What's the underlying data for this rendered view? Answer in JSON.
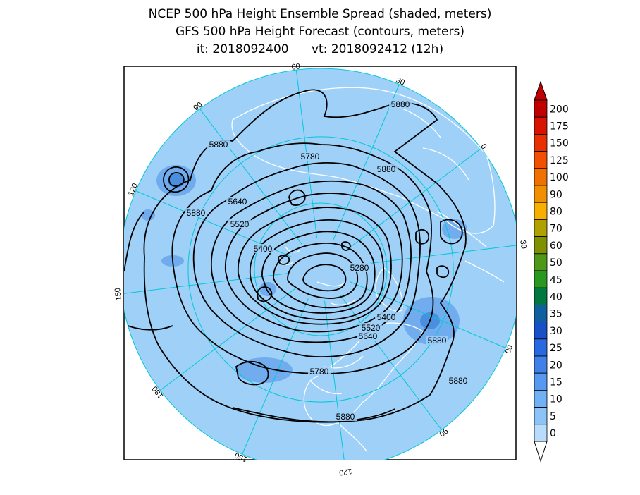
{
  "titles": {
    "line1": "NCEP 500 hPa Height Ensemble Spread (shaded, meters)",
    "line2": "GFS 500 hPa Height Forecast (contours, meters)",
    "line3": "it: 2018092400      vt: 2018092412 (12h)"
  },
  "map": {
    "projection": "polar-stereographic",
    "background_color": "#9fd0f8",
    "meridian_color": "#00c8d8",
    "coastline_color": "#ffffff",
    "contour_color": "#000000",
    "longitude_labels": [
      "60",
      "30",
      "0",
      "30",
      "60",
      "90",
      "120",
      "150",
      "180",
      "150",
      "120",
      "90"
    ],
    "contour_labels": [
      {
        "text": "5880"
      },
      {
        "text": "5880"
      },
      {
        "text": "5880"
      },
      {
        "text": "5880"
      },
      {
        "text": "5880"
      },
      {
        "text": "5880"
      },
      {
        "text": "5880"
      },
      {
        "text": "5780"
      },
      {
        "text": "5780"
      },
      {
        "text": "5640"
      },
      {
        "text": "5640"
      },
      {
        "text": "5520"
      },
      {
        "text": "5520"
      },
      {
        "text": "5400"
      },
      {
        "text": "5400"
      },
      {
        "text": "5280"
      }
    ]
  },
  "colorbar": {
    "labels": [
      "200",
      "175",
      "150",
      "125",
      "100",
      "90",
      "80",
      "70",
      "60",
      "50",
      "45",
      "40",
      "35",
      "30",
      "25",
      "20",
      "15",
      "10",
      "5",
      "0"
    ],
    "colors": [
      "#c00000",
      "#d81400",
      "#e83000",
      "#f05000",
      "#f07000",
      "#f09000",
      "#f8b000",
      "#b0a000",
      "#809000",
      "#509818",
      "#289820",
      "#007840",
      "#1060a0",
      "#1850c8",
      "#2868e0",
      "#4080e8",
      "#5898f0",
      "#70b0f4",
      "#8cc4f8",
      "#b8dcfc"
    ]
  }
}
